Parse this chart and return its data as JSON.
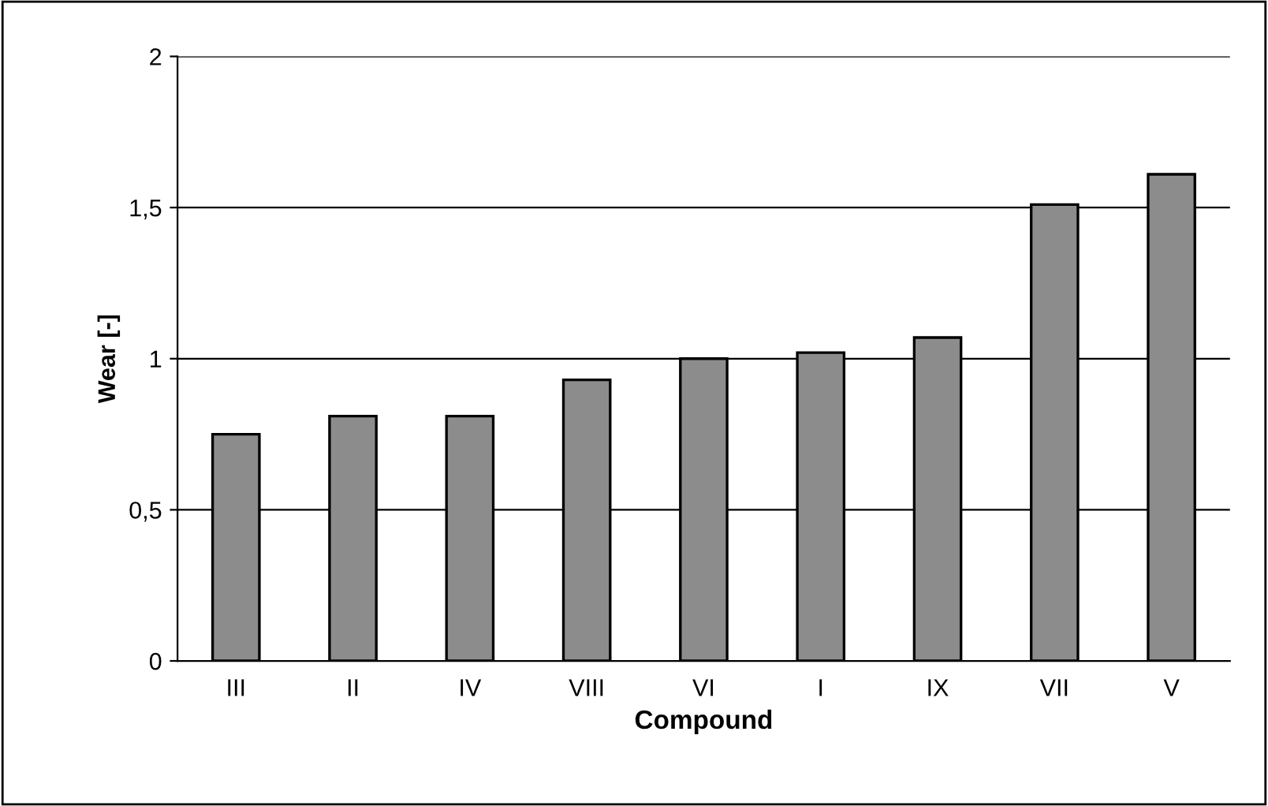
{
  "chart_data": {
    "type": "bar",
    "xlabel": "Compound",
    "ylabel": "Wear [-]",
    "categories": [
      "III",
      "II",
      "IV",
      "VIII",
      "VI",
      "I",
      "IX",
      "VII",
      "V"
    ],
    "values": [
      0.75,
      0.81,
      0.81,
      0.93,
      1.0,
      1.02,
      1.07,
      1.51,
      1.61
    ],
    "color": "#8c8c8c",
    "ylim": [
      0,
      2
    ],
    "yticks": [
      0,
      {
        "value": 0.5,
        "label": "0,5"
      },
      1,
      {
        "value": 1.5,
        "label": "1,5"
      },
      2
    ],
    "grid": "y",
    "legend": false
  }
}
